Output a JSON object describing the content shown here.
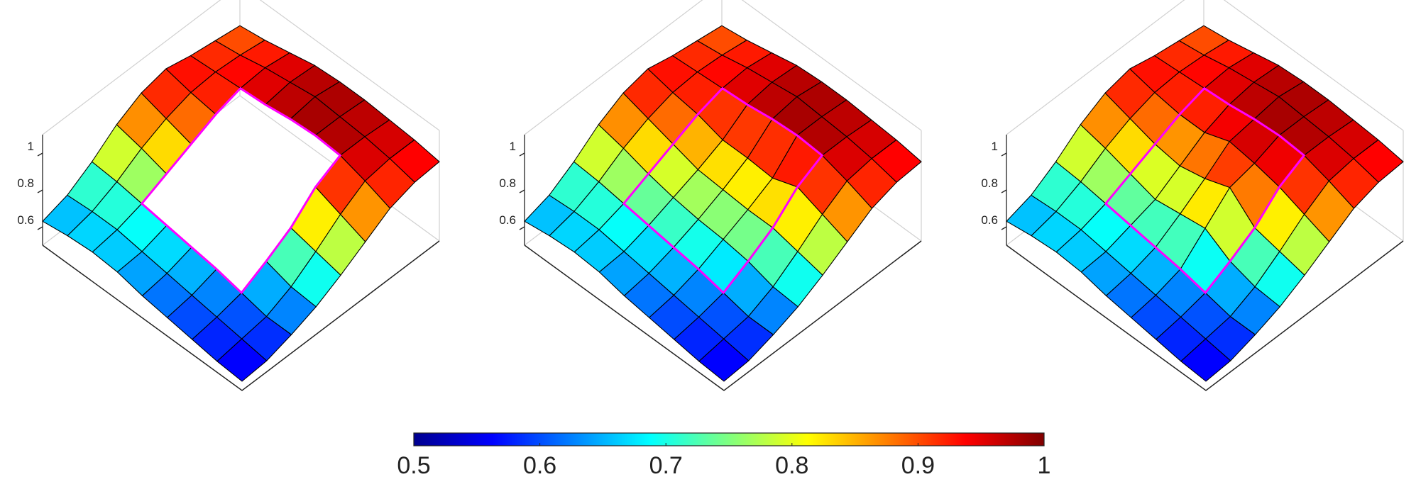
{
  "chart_data": [
    {
      "type": "surface",
      "zlim": [
        0.5,
        1.1
      ],
      "zticks": [
        0.6,
        0.8,
        1
      ],
      "z": [
        [
          0.55,
          0.56,
          0.6,
          0.65,
          0.72,
          0.8,
          0.88,
          0.92,
          0.93
        ],
        [
          0.56,
          0.58,
          0.6,
          0.66,
          0.75,
          0.85,
          0.93,
          0.95,
          0.95
        ],
        [
          0.58,
          0.6,
          0.63,
          0.7,
          0.78,
          0.9,
          0.97,
          0.97,
          0.96
        ],
        [
          0.6,
          0.62,
          0.66,
          null,
          null,
          null,
          0.98,
          0.98,
          0.97
        ],
        [
          0.62,
          0.64,
          0.68,
          null,
          null,
          null,
          0.97,
          0.99,
          0.97
        ],
        [
          0.65,
          0.66,
          0.7,
          null,
          null,
          null,
          0.95,
          0.97,
          0.96
        ],
        [
          0.66,
          0.68,
          0.72,
          0.78,
          0.84,
          0.9,
          0.94,
          0.95,
          0.93
        ],
        [
          0.65,
          0.68,
          0.74,
          0.82,
          0.88,
          0.92,
          0.93,
          0.92,
          0.9
        ],
        [
          0.63,
          0.67,
          0.75,
          0.85,
          0.92,
          0.95,
          0.92,
          0.9,
          0.88
        ]
      ]
    },
    {
      "type": "surface",
      "zlim": [
        0.5,
        1.1
      ],
      "zticks": [
        0.6,
        0.8,
        1
      ],
      "z": [
        [
          0.55,
          0.56,
          0.6,
          0.65,
          0.72,
          0.8,
          0.88,
          0.92,
          0.93
        ],
        [
          0.56,
          0.58,
          0.6,
          0.66,
          0.75,
          0.85,
          0.93,
          0.95,
          0.95
        ],
        [
          0.58,
          0.6,
          0.63,
          0.7,
          0.78,
          0.9,
          0.97,
          0.97,
          0.96
        ],
        [
          0.6,
          0.62,
          0.66,
          0.72,
          0.78,
          0.85,
          0.98,
          0.98,
          0.97
        ],
        [
          0.62,
          0.64,
          0.68,
          0.73,
          0.79,
          0.86,
          0.97,
          0.99,
          0.97
        ],
        [
          0.65,
          0.66,
          0.7,
          0.75,
          0.8,
          0.86,
          0.95,
          0.97,
          0.96
        ],
        [
          0.66,
          0.68,
          0.72,
          0.78,
          0.84,
          0.9,
          0.94,
          0.95,
          0.93
        ],
        [
          0.65,
          0.68,
          0.74,
          0.82,
          0.88,
          0.92,
          0.93,
          0.92,
          0.9
        ],
        [
          0.63,
          0.67,
          0.75,
          0.85,
          0.92,
          0.95,
          0.92,
          0.9,
          0.88
        ]
      ]
    },
    {
      "type": "surface",
      "zlim": [
        0.5,
        1.1
      ],
      "zticks": [
        0.6,
        0.8,
        1
      ],
      "z": [
        [
          0.55,
          0.56,
          0.6,
          0.65,
          0.72,
          0.8,
          0.88,
          0.92,
          0.93
        ],
        [
          0.56,
          0.58,
          0.6,
          0.66,
          0.75,
          0.85,
          0.93,
          0.95,
          0.95
        ],
        [
          0.58,
          0.6,
          0.63,
          0.7,
          0.78,
          0.9,
          0.97,
          0.97,
          0.96
        ],
        [
          0.6,
          0.62,
          0.66,
          0.78,
          0.9,
          0.93,
          0.98,
          0.98,
          0.97
        ],
        [
          0.62,
          0.64,
          0.68,
          0.76,
          0.85,
          0.95,
          0.97,
          0.99,
          0.97
        ],
        [
          0.65,
          0.66,
          0.7,
          0.74,
          0.82,
          0.9,
          0.95,
          0.97,
          0.96
        ],
        [
          0.66,
          0.68,
          0.72,
          0.78,
          0.84,
          0.9,
          0.94,
          0.95,
          0.93
        ],
        [
          0.65,
          0.68,
          0.74,
          0.82,
          0.88,
          0.92,
          0.93,
          0.92,
          0.9
        ],
        [
          0.63,
          0.67,
          0.75,
          0.85,
          0.92,
          0.95,
          0.92,
          0.9,
          0.88
        ]
      ]
    },
    {
      "type": "colorbar",
      "clim": [
        0.5,
        1
      ],
      "ticks": [
        0.5,
        0.6,
        0.7,
        0.8,
        0.9,
        1
      ]
    }
  ]
}
